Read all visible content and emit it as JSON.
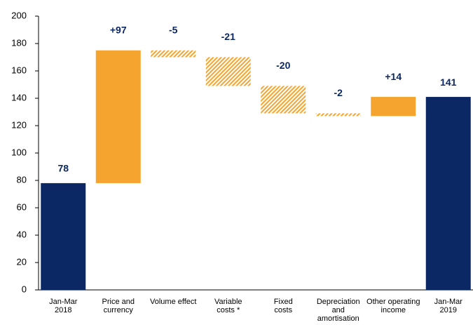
{
  "chart_data": {
    "type": "waterfall",
    "categories": [
      "Jan-Mar\n2018",
      "Price and\ncurrency",
      "Volume effect",
      "Variable\ncosts *",
      "Fixed\ncosts",
      "Depreciation\nand\namortisation",
      "Other operating\nincome",
      "Jan-Mar\n2019"
    ],
    "values": [
      78,
      97,
      -5,
      -21,
      -20,
      -2,
      14,
      141
    ],
    "value_labels": [
      "78",
      "+97",
      "-5",
      "-21",
      "-20",
      "-2",
      "+14",
      "141"
    ],
    "bar_styles": [
      "total",
      "increase",
      "decrease",
      "decrease",
      "decrease",
      "decrease",
      "increase",
      "total"
    ],
    "colors": {
      "total": "#0c2864",
      "increase": "#f5a52f",
      "decrease": "#f5a52f"
    },
    "hatched": {
      "total": false,
      "increase": false,
      "decrease": true
    },
    "ylim": [
      0,
      200
    ],
    "yticks": [
      0,
      20,
      40,
      60,
      80,
      100,
      120,
      140,
      160,
      180,
      200
    ]
  }
}
